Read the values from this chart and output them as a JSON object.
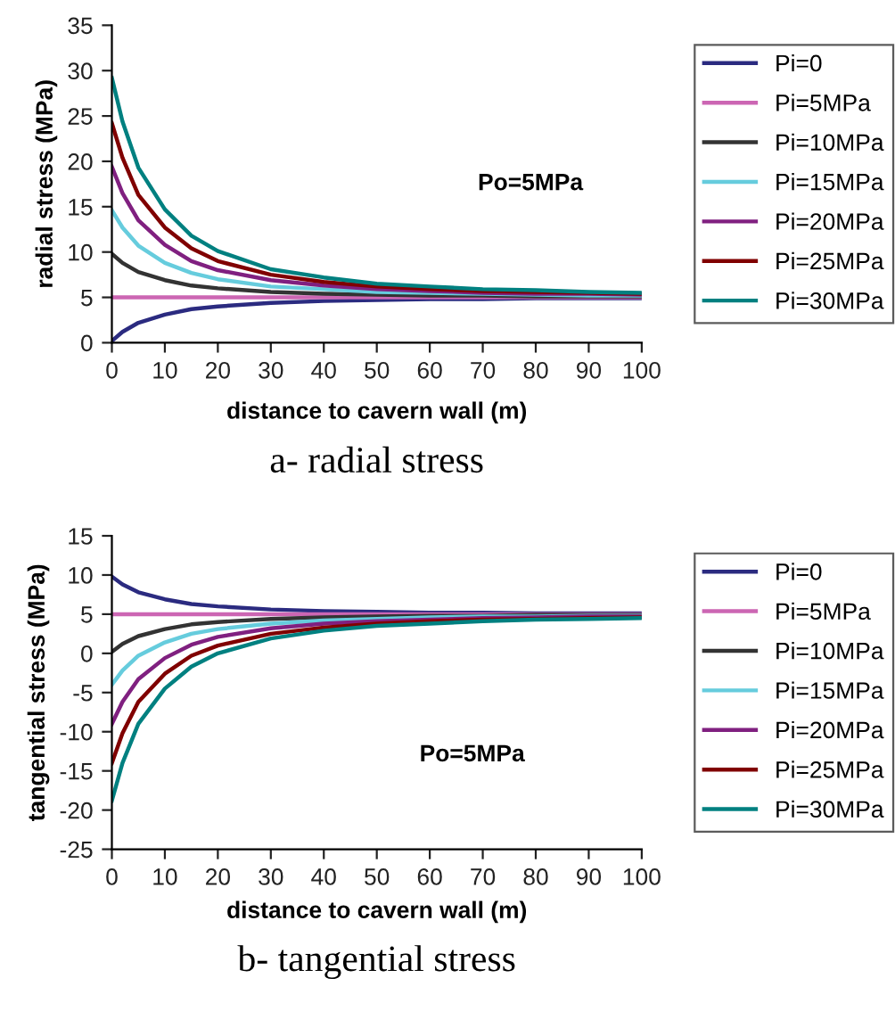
{
  "chart_data": [
    {
      "type": "line",
      "title": "a- radial stress",
      "xlabel": "distance to cavern wall (m)",
      "ylabel": "radial stress (MPa)",
      "annotations": [
        "Po=5MPa"
      ],
      "x": [
        0,
        2,
        5,
        10,
        15,
        20,
        30,
        40,
        50,
        60,
        70,
        80,
        90,
        100
      ],
      "xlim": [
        0,
        100
      ],
      "xticks": [
        0,
        10,
        20,
        30,
        40,
        50,
        60,
        70,
        80,
        90,
        100
      ],
      "ylim": [
        0,
        35
      ],
      "yticks": [
        0,
        5,
        10,
        15,
        20,
        25,
        30,
        35
      ],
      "grid": false,
      "legend": "right",
      "marker": "none",
      "line_style": "solid",
      "series": [
        {
          "name": "Pi=0",
          "color": "#2b2b80",
          "values": [
            0.2,
            1.2,
            2.2,
            3.1,
            3.7,
            4.0,
            4.4,
            4.6,
            4.7,
            4.8,
            4.8,
            4.9,
            4.9,
            4.9
          ]
        },
        {
          "name": "Pi=5MPa",
          "color": "#cc66b3",
          "values": [
            5,
            5,
            5,
            5,
            5,
            5,
            5,
            5,
            5,
            5,
            5,
            5,
            5,
            5
          ]
        },
        {
          "name": "Pi=10MPa",
          "color": "#333333",
          "values": [
            9.8,
            8.8,
            7.8,
            6.9,
            6.3,
            6.0,
            5.6,
            5.4,
            5.3,
            5.2,
            5.2,
            5.1,
            5.1,
            5.1
          ]
        },
        {
          "name": "Pi=15MPa",
          "color": "#66ccdd",
          "values": [
            14.6,
            12.7,
            10.7,
            8.8,
            7.7,
            7.0,
            6.2,
            5.9,
            5.6,
            5.5,
            5.4,
            5.3,
            5.2,
            5.2
          ]
        },
        {
          "name": "Pi=20MPa",
          "color": "#802080",
          "values": [
            19.4,
            16.5,
            13.5,
            10.8,
            9.0,
            8.0,
            6.9,
            6.3,
            5.9,
            5.7,
            5.5,
            5.4,
            5.4,
            5.3
          ]
        },
        {
          "name": "Pi=25MPa",
          "color": "#800000",
          "values": [
            24.2,
            20.4,
            16.3,
            12.7,
            10.4,
            9.0,
            7.5,
            6.7,
            6.2,
            5.9,
            5.7,
            5.6,
            5.5,
            5.4
          ]
        },
        {
          "name": "Pi=30MPa",
          "color": "#008080",
          "values": [
            29.2,
            24.4,
            19.3,
            14.7,
            11.8,
            10.1,
            8.1,
            7.2,
            6.5,
            6.2,
            5.9,
            5.8,
            5.6,
            5.5
          ]
        }
      ]
    },
    {
      "type": "line",
      "title": "b- tangential stress",
      "xlabel": "distance to cavern wall (m)",
      "ylabel": "tangential stress (MPa)",
      "annotations": [
        "Po=5MPa"
      ],
      "x": [
        0,
        2,
        5,
        10,
        15,
        20,
        30,
        40,
        50,
        60,
        70,
        80,
        90,
        100
      ],
      "xlim": [
        0,
        100
      ],
      "xticks": [
        0,
        10,
        20,
        30,
        40,
        50,
        60,
        70,
        80,
        90,
        100
      ],
      "ylim": [
        -25,
        15
      ],
      "yticks": [
        -25,
        -20,
        -15,
        -10,
        -5,
        0,
        5,
        10,
        15
      ],
      "grid": false,
      "legend": "right",
      "marker": "none",
      "line_style": "solid",
      "series": [
        {
          "name": "Pi=0",
          "color": "#2b2b80",
          "values": [
            9.8,
            8.8,
            7.8,
            6.9,
            6.3,
            6.0,
            5.6,
            5.4,
            5.3,
            5.2,
            5.2,
            5.1,
            5.1,
            5.1
          ]
        },
        {
          "name": "Pi=5MPa",
          "color": "#cc66b3",
          "values": [
            5,
            5,
            5,
            5,
            5,
            5,
            5,
            5,
            5,
            5,
            5,
            5,
            5,
            5
          ]
        },
        {
          "name": "Pi=10MPa",
          "color": "#333333",
          "values": [
            0.2,
            1.2,
            2.2,
            3.1,
            3.7,
            4.0,
            4.4,
            4.6,
            4.7,
            4.8,
            4.8,
            4.9,
            4.9,
            4.9
          ]
        },
        {
          "name": "Pi=15MPa",
          "color": "#66ccdd",
          "values": [
            -4,
            -2.2,
            -0.3,
            1.4,
            2.5,
            3.1,
            3.8,
            4.2,
            4.4,
            4.6,
            4.7,
            4.7,
            4.8,
            4.8
          ]
        },
        {
          "name": "Pi=20MPa",
          "color": "#802080",
          "values": [
            -9,
            -6.2,
            -3.3,
            -0.6,
            1.1,
            2.1,
            3.2,
            3.8,
            4.1,
            4.3,
            4.5,
            4.6,
            4.7,
            4.7
          ]
        },
        {
          "name": "Pi=25MPa",
          "color": "#800000",
          "values": [
            -14,
            -10.2,
            -6.2,
            -2.6,
            -0.3,
            1.0,
            2.5,
            3.3,
            3.8,
            4.1,
            4.3,
            4.4,
            4.5,
            4.6
          ]
        },
        {
          "name": "Pi=30MPa",
          "color": "#008080",
          "values": [
            -18.8,
            -14,
            -9,
            -4.5,
            -1.7,
            0,
            1.9,
            2.9,
            3.5,
            3.8,
            4.1,
            4.3,
            4.4,
            4.5
          ]
        }
      ]
    }
  ]
}
